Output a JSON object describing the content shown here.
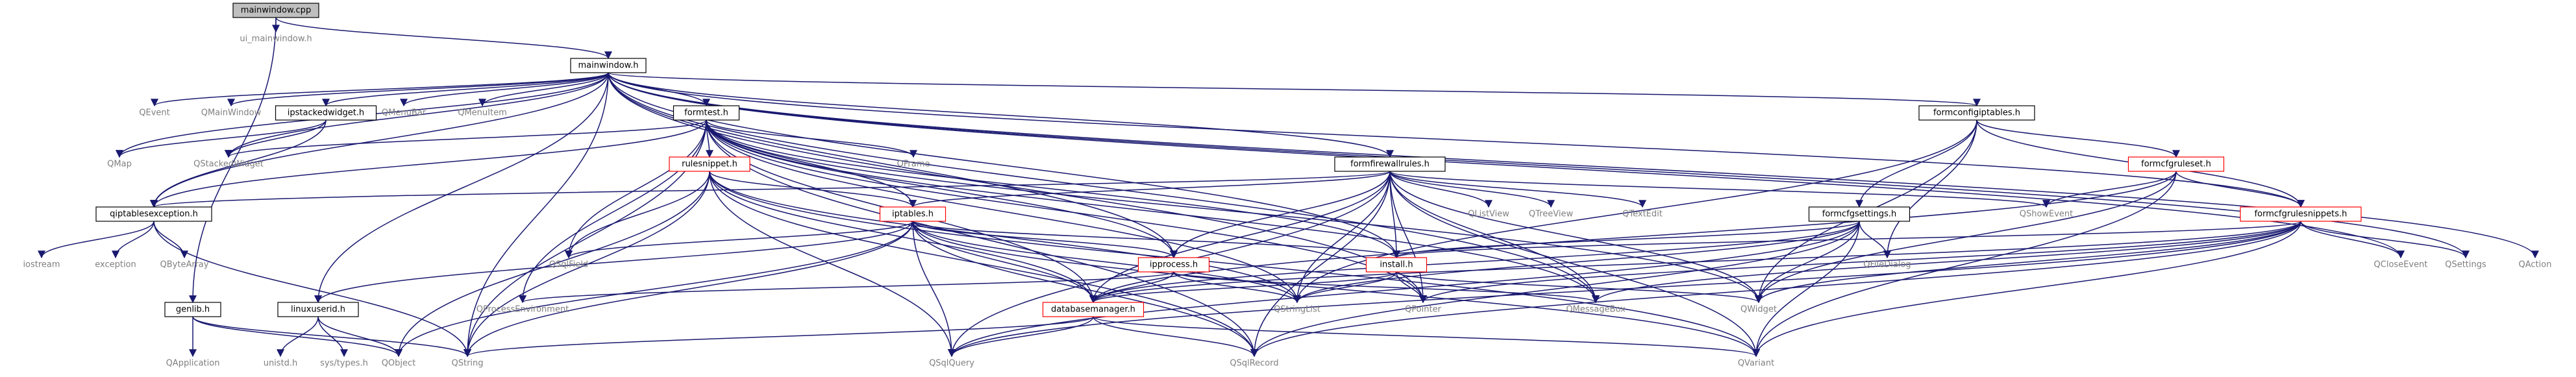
{
  "diagram": {
    "type": "include-dependency-graph",
    "root": "mainwindow.cpp",
    "colors": {
      "edge": "#191970",
      "root_fill": "#bfbfbf",
      "highlight_border": "#ff0000",
      "external_text": "#7f7f7f",
      "background": "#ffffff"
    },
    "nodes": [
      {
        "id": "mainwindow_cpp",
        "label": "mainwindow.cpp",
        "kind": "root"
      },
      {
        "id": "ui_mainwindow_h",
        "label": "ui_mainwindow.h",
        "kind": "external"
      },
      {
        "id": "mainwindow_h",
        "label": "mainwindow.h",
        "kind": "file"
      },
      {
        "id": "genlib_h",
        "label": "genlib.h",
        "kind": "file"
      },
      {
        "id": "QEvent",
        "label": "QEvent",
        "kind": "external"
      },
      {
        "id": "QMainWindow",
        "label": "QMainWindow",
        "kind": "external"
      },
      {
        "id": "ipstackedwidget_h",
        "label": "ipstackedwidget.h",
        "kind": "file"
      },
      {
        "id": "QMenuBar",
        "label": "QMenuBar",
        "kind": "external"
      },
      {
        "id": "QMenuItem",
        "label": "QMenuItem",
        "kind": "external"
      },
      {
        "id": "formtest_h",
        "label": "formtest.h",
        "kind": "file"
      },
      {
        "id": "formconfigiptables_h",
        "label": "formconfigiptables.h",
        "kind": "file"
      },
      {
        "id": "QMap",
        "label": "QMap",
        "kind": "external"
      },
      {
        "id": "QStackedWidget",
        "label": "QStackedWidget",
        "kind": "external"
      },
      {
        "id": "rulesnippet_h",
        "label": "rulesnippet.h",
        "kind": "highlight"
      },
      {
        "id": "QFrame",
        "label": "QFrame",
        "kind": "external"
      },
      {
        "id": "formfirewallrules_h",
        "label": "formfirewallrules.h",
        "kind": "file"
      },
      {
        "id": "formcfgruleset_h",
        "label": "formcfgruleset.h",
        "kind": "highlight"
      },
      {
        "id": "qiptablesexception_h",
        "label": "qiptablesexception.h",
        "kind": "file"
      },
      {
        "id": "iptables_h",
        "label": "iptables.h",
        "kind": "highlight"
      },
      {
        "id": "QListView",
        "label": "QListView",
        "kind": "external"
      },
      {
        "id": "QTreeView",
        "label": "QTreeView",
        "kind": "external"
      },
      {
        "id": "QTextEdit",
        "label": "QTextEdit",
        "kind": "external"
      },
      {
        "id": "formcfgsettings_h",
        "label": "formcfgsettings.h",
        "kind": "file"
      },
      {
        "id": "QShowEvent",
        "label": "QShowEvent",
        "kind": "external"
      },
      {
        "id": "formcfgrulesnippets_h",
        "label": "formcfgrulesnippets.h",
        "kind": "highlight"
      },
      {
        "id": "iostream",
        "label": "iostream",
        "kind": "external"
      },
      {
        "id": "exception",
        "label": "exception",
        "kind": "external"
      },
      {
        "id": "QByteArray",
        "label": "QByteArray",
        "kind": "external"
      },
      {
        "id": "QSqlField",
        "label": "QSqlField",
        "kind": "external"
      },
      {
        "id": "ipprocess_h",
        "label": "ipprocess.h",
        "kind": "highlight"
      },
      {
        "id": "install_h",
        "label": "install.h",
        "kind": "highlight"
      },
      {
        "id": "QFileDialog",
        "label": "QFileDialog",
        "kind": "external"
      },
      {
        "id": "QCloseEvent",
        "label": "QCloseEvent",
        "kind": "external"
      },
      {
        "id": "QSettings",
        "label": "QSettings",
        "kind": "external"
      },
      {
        "id": "QAction",
        "label": "QAction",
        "kind": "external"
      },
      {
        "id": "linuxuserid_h",
        "label": "linuxuserid.h",
        "kind": "file"
      },
      {
        "id": "QProcessEnvironment",
        "label": "QProcessEnvironment",
        "kind": "external"
      },
      {
        "id": "QStringList",
        "label": "QStringList",
        "kind": "external"
      },
      {
        "id": "databasemanager_h",
        "label": "databasemanager.h",
        "kind": "highlight"
      },
      {
        "id": "QPointer",
        "label": "QPointer",
        "kind": "external"
      },
      {
        "id": "QMessageBox",
        "label": "QMessageBox",
        "kind": "external"
      },
      {
        "id": "QWidget",
        "label": "QWidget",
        "kind": "external"
      },
      {
        "id": "QApplication",
        "label": "QApplication",
        "kind": "external"
      },
      {
        "id": "unistd_h",
        "label": "unistd.h",
        "kind": "external"
      },
      {
        "id": "sys_types_h",
        "label": "sys/types.h",
        "kind": "external"
      },
      {
        "id": "QObject",
        "label": "QObject",
        "kind": "external"
      },
      {
        "id": "QString",
        "label": "QString",
        "kind": "external"
      },
      {
        "id": "QSqlQuery",
        "label": "QSqlQuery",
        "kind": "external"
      },
      {
        "id": "QSqlRecord",
        "label": "QSqlRecord",
        "kind": "external"
      },
      {
        "id": "QVariant",
        "label": "QVariant",
        "kind": "external"
      }
    ],
    "edges": [
      [
        "mainwindow_cpp",
        "ui_mainwindow_h"
      ],
      [
        "mainwindow_cpp",
        "mainwindow_h"
      ],
      [
        "mainwindow_cpp",
        "genlib_h"
      ],
      [
        "mainwindow_h",
        "QEvent"
      ],
      [
        "mainwindow_h",
        "QMainWindow"
      ],
      [
        "mainwindow_h",
        "ipstackedwidget_h"
      ],
      [
        "mainwindow_h",
        "QMenuBar"
      ],
      [
        "mainwindow_h",
        "QMenuItem"
      ],
      [
        "mainwindow_h",
        "formtest_h"
      ],
      [
        "mainwindow_h",
        "formconfigiptables_h"
      ],
      [
        "mainwindow_h",
        "QMap"
      ],
      [
        "mainwindow_h",
        "qiptablesexception_h"
      ],
      [
        "mainwindow_h",
        "formfirewallrules_h"
      ],
      [
        "mainwindow_h",
        "linuxuserid_h"
      ],
      [
        "mainwindow_h",
        "QStackedWidget"
      ],
      [
        "mainwindow_h",
        "QString"
      ],
      [
        "mainwindow_h",
        "ipprocess_h"
      ],
      [
        "mainwindow_h",
        "install_h"
      ],
      [
        "mainwindow_h",
        "QPointer"
      ],
      [
        "mainwindow_h",
        "QMessageBox"
      ],
      [
        "mainwindow_h",
        "QSettings"
      ],
      [
        "mainwindow_h",
        "QAction"
      ],
      [
        "mainwindow_h",
        "QCloseEvent"
      ],
      [
        "mainwindow_h",
        "formcfgrulesnippets_h"
      ],
      [
        "ipstackedwidget_h",
        "QMap"
      ],
      [
        "ipstackedwidget_h",
        "QStackedWidget"
      ],
      [
        "ipstackedwidget_h",
        "qiptablesexception_h"
      ],
      [
        "formtest_h",
        "rulesnippet_h"
      ],
      [
        "formtest_h",
        "QFrame"
      ],
      [
        "formtest_h",
        "iptables_h"
      ],
      [
        "formtest_h",
        "qiptablesexception_h"
      ],
      [
        "formtest_h",
        "QStackedWidget"
      ],
      [
        "formtest_h",
        "QSqlField"
      ],
      [
        "formtest_h",
        "ipprocess_h"
      ],
      [
        "formtest_h",
        "install_h"
      ],
      [
        "formtest_h",
        "databasemanager_h"
      ],
      [
        "formtest_h",
        "QProcessEnvironment"
      ],
      [
        "formtest_h",
        "QStringList"
      ],
      [
        "formtest_h",
        "QPointer"
      ],
      [
        "formtest_h",
        "QWidget"
      ],
      [
        "formtest_h",
        "QString"
      ],
      [
        "formtest_h",
        "QSqlRecord"
      ],
      [
        "formtest_h",
        "QMessageBox"
      ],
      [
        "rulesnippet_h",
        "iptables_h"
      ],
      [
        "rulesnippet_h",
        "QSqlField"
      ],
      [
        "rulesnippet_h",
        "databasemanager_h"
      ],
      [
        "rulesnippet_h",
        "QObject"
      ],
      [
        "rulesnippet_h",
        "QString"
      ],
      [
        "rulesnippet_h",
        "QSqlQuery"
      ],
      [
        "rulesnippet_h",
        "QSqlRecord"
      ],
      [
        "rulesnippet_h",
        "QStringList"
      ],
      [
        "rulesnippet_h",
        "QVariant"
      ],
      [
        "formfirewallrules_h",
        "iptables_h"
      ],
      [
        "formfirewallrules_h",
        "qiptablesexception_h"
      ],
      [
        "formfirewallrules_h",
        "QListView"
      ],
      [
        "formfirewallrules_h",
        "QTreeView"
      ],
      [
        "formfirewallrules_h",
        "QTextEdit"
      ],
      [
        "formfirewallrules_h",
        "QShowEvent"
      ],
      [
        "formfirewallrules_h",
        "ipprocess_h"
      ],
      [
        "formfirewallrules_h",
        "install_h"
      ],
      [
        "formfirewallrules_h",
        "databasemanager_h"
      ],
      [
        "formfirewallrules_h",
        "QStringList"
      ],
      [
        "formfirewallrules_h",
        "QPointer"
      ],
      [
        "formfirewallrules_h",
        "QMessageBox"
      ],
      [
        "formfirewallrules_h",
        "QWidget"
      ],
      [
        "formfirewallrules_h",
        "QSqlQuery"
      ],
      [
        "formfirewallrules_h",
        "QSqlRecord"
      ],
      [
        "formfirewallrules_h",
        "QVariant"
      ],
      [
        "formconfigiptables_h",
        "formcfgruleset_h"
      ],
      [
        "formconfigiptables_h",
        "formcfgsettings_h"
      ],
      [
        "formconfigiptables_h",
        "formcfgrulesnippets_h"
      ],
      [
        "formconfigiptables_h",
        "QFileDialog"
      ],
      [
        "formconfigiptables_h",
        "QWidget"
      ],
      [
        "formconfigiptables_h",
        "QStringList"
      ],
      [
        "formcfgruleset_h",
        "formcfgrulesnippets_h"
      ],
      [
        "formcfgruleset_h",
        "QShowEvent"
      ],
      [
        "formcfgruleset_h",
        "databasemanager_h"
      ],
      [
        "formcfgruleset_h",
        "QWidget"
      ],
      [
        "formcfgruleset_h",
        "QVariant"
      ],
      [
        "formcfgsettings_h",
        "install_h"
      ],
      [
        "formcfgsettings_h",
        "QFileDialog"
      ],
      [
        "formcfgsettings_h",
        "QWidget"
      ],
      [
        "formcfgsettings_h",
        "databasemanager_h"
      ],
      [
        "formcfgsettings_h",
        "QStringList"
      ],
      [
        "formcfgsettings_h",
        "QSqlQuery"
      ],
      [
        "formcfgsettings_h",
        "QSqlRecord"
      ],
      [
        "formcfgsettings_h",
        "QVariant"
      ],
      [
        "formcfgrulesnippets_h",
        "install_h"
      ],
      [
        "formcfgrulesnippets_h",
        "databasemanager_h"
      ],
      [
        "formcfgrulesnippets_h",
        "QCloseEvent"
      ],
      [
        "formcfgrulesnippets_h",
        "QSettings"
      ],
      [
        "formcfgrulesnippets_h",
        "QPointer"
      ],
      [
        "formcfgrulesnippets_h",
        "QMessageBox"
      ],
      [
        "formcfgrulesnippets_h",
        "QWidget"
      ],
      [
        "formcfgrulesnippets_h",
        "QSqlQuery"
      ],
      [
        "formcfgrulesnippets_h",
        "QSqlRecord"
      ],
      [
        "formcfgrulesnippets_h",
        "QVariant"
      ],
      [
        "qiptablesexception_h",
        "iostream"
      ],
      [
        "qiptablesexception_h",
        "exception"
      ],
      [
        "qiptablesexception_h",
        "QByteArray"
      ],
      [
        "qiptablesexception_h",
        "QString"
      ],
      [
        "iptables_h",
        "QSqlField"
      ],
      [
        "iptables_h",
        "ipprocess_h"
      ],
      [
        "iptables_h",
        "install_h"
      ],
      [
        "iptables_h",
        "linuxuserid_h"
      ],
      [
        "iptables_h",
        "databasemanager_h"
      ],
      [
        "iptables_h",
        "QStringList"
      ],
      [
        "iptables_h",
        "QObject"
      ],
      [
        "iptables_h",
        "QString"
      ],
      [
        "iptables_h",
        "QSqlQuery"
      ],
      [
        "iptables_h",
        "QSqlRecord"
      ],
      [
        "iptables_h",
        "QVariant"
      ],
      [
        "ipprocess_h",
        "QProcessEnvironment"
      ],
      [
        "ipprocess_h",
        "QStringList"
      ],
      [
        "ipprocess_h",
        "QMessageBox"
      ],
      [
        "ipprocess_h",
        "databasemanager_h"
      ],
      [
        "install_h",
        "databasemanager_h"
      ],
      [
        "install_h",
        "QStringList"
      ],
      [
        "install_h",
        "QPointer"
      ],
      [
        "install_h",
        "QWidget"
      ],
      [
        "linuxuserid_h",
        "unistd_h"
      ],
      [
        "linuxuserid_h",
        "sys_types_h"
      ],
      [
        "linuxuserid_h",
        "QObject"
      ],
      [
        "databasemanager_h",
        "QString"
      ],
      [
        "databasemanager_h",
        "QSqlQuery"
      ],
      [
        "databasemanager_h",
        "QSqlRecord"
      ],
      [
        "databasemanager_h",
        "QVariant"
      ],
      [
        "genlib_h",
        "QApplication"
      ],
      [
        "genlib_h",
        "QObject"
      ],
      [
        "genlib_h",
        "QString"
      ]
    ]
  }
}
